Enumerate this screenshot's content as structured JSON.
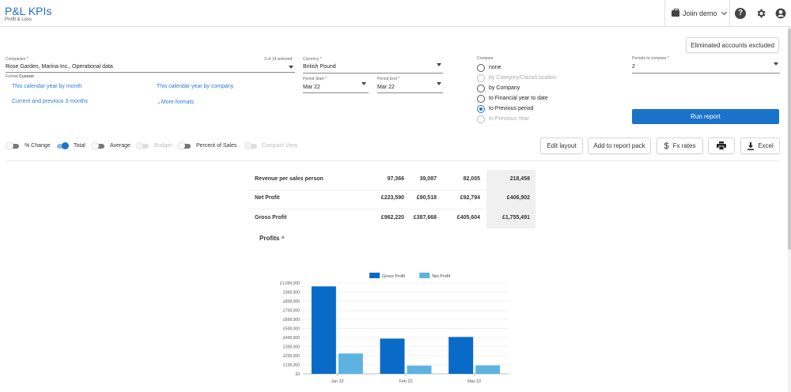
{
  "header": {
    "title": "P&L KPIs",
    "subtitle": "Profit & Loss",
    "company": "Joiin demo"
  },
  "toolbar": {
    "eliminated": "Eliminated accounts excluded",
    "run_report": "Run report",
    "edit_layout": "Edit layout",
    "add_to_pack": "Add to report pack",
    "fx_rates": "Fx rates",
    "excel": "Excel"
  },
  "form": {
    "companies_label": "Companies *",
    "companies_count": "3 of 14 selected",
    "companies_value": "Rose Garden, Marina Inc., Operational data",
    "format_label": "Format",
    "format_value": "Custom",
    "currency_label": "Currency *",
    "currency_value": "British Pound",
    "period_start_label": "Period Start *",
    "period_start_value": "Mar 22",
    "period_end_label": "Period End *",
    "period_end_value": "Mar 22",
    "periods_compare_label": "Periods to compare *",
    "periods_compare_value": "2",
    "compare_label": "Compare",
    "compare_options": [
      {
        "label": "none",
        "disabled": false,
        "selected": false
      },
      {
        "label": "by Category/Class/Location",
        "disabled": true,
        "selected": false
      },
      {
        "label": "by Company",
        "disabled": false,
        "selected": false
      },
      {
        "label": "to Financial year to date",
        "disabled": false,
        "selected": false
      },
      {
        "label": "to Previous period",
        "disabled": false,
        "selected": true
      },
      {
        "label": "to Previous Year",
        "disabled": true,
        "selected": false
      }
    ],
    "format_links": [
      "This calendar year by month",
      "This calendar year by company",
      "Current and previous 3 months",
      "More formats"
    ]
  },
  "toggles": [
    {
      "label": "% Change",
      "on": false,
      "disabled": false
    },
    {
      "label": "Total",
      "on": true,
      "disabled": false
    },
    {
      "label": "Average",
      "on": false,
      "disabled": false
    },
    {
      "label": "Budget",
      "on": false,
      "disabled": true
    },
    {
      "label": "Percent of Sales",
      "on": false,
      "disabled": false
    },
    {
      "label": "Compact View",
      "on": false,
      "disabled": true
    }
  ],
  "table": {
    "rows": [
      {
        "label": "Revenue per sales person",
        "values": [
          "97,366",
          "39,087",
          "82,005",
          "218,458"
        ]
      },
      {
        "label": "Net Profit",
        "values": [
          "£223,590",
          "£90,518",
          "£92,794",
          "£406,902"
        ]
      },
      {
        "label": "Gross Profit",
        "values": [
          "£962,220",
          "£387,668",
          "£405,604",
          "£1,755,491"
        ]
      }
    ]
  },
  "section_title": "Profits",
  "colors": {
    "accent": "#1a73c8",
    "gross_profit": "#0a6ac8",
    "net_profit": "#5cb3e0"
  },
  "chart_data": {
    "type": "bar",
    "categories": [
      "Jan 22",
      "Feb 22",
      "Mar 22"
    ],
    "series": [
      {
        "name": "Gross Profit",
        "values": [
          962220,
          387668,
          405604
        ]
      },
      {
        "name": "Net Profit",
        "values": [
          223590,
          90518,
          92794
        ]
      }
    ],
    "ylim": [
      0,
      1000000
    ],
    "yticks": [
      "£0",
      "£100,000",
      "£200,000",
      "£300,000",
      "£400,000",
      "£500,000",
      "£600,000",
      "£700,000",
      "£800,000",
      "£900,000",
      "£1,000,000"
    ],
    "grid": true,
    "legend": "top-center"
  }
}
